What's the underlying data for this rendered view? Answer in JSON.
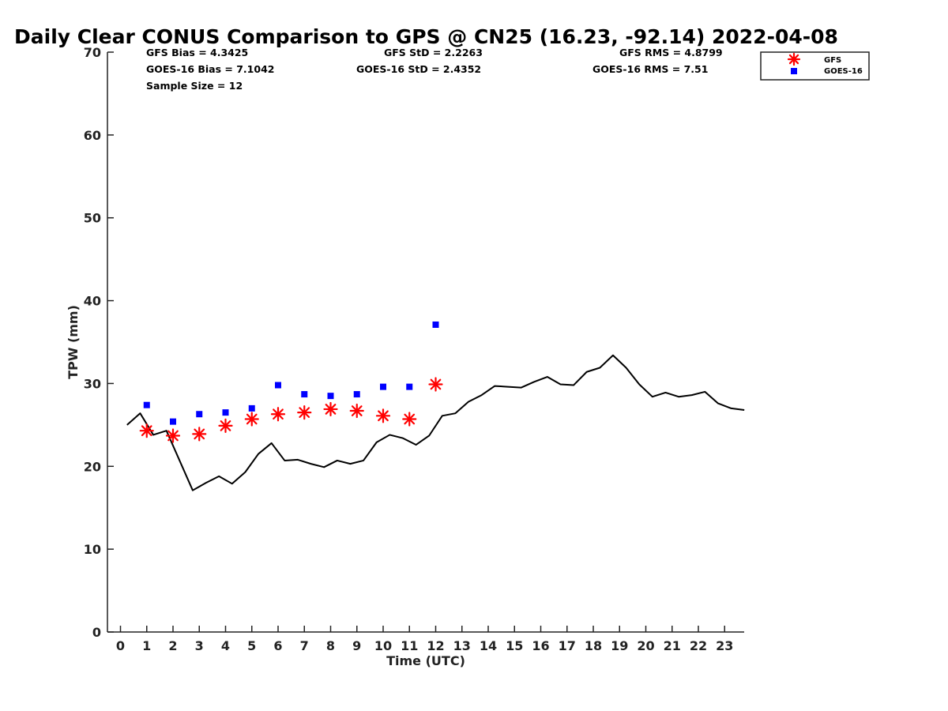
{
  "chart_data": {
    "type": "scatter",
    "title": "Daily Clear CONUS Comparison to GPS @ CN25 (16.23, -92.14) 2022-04-08",
    "xlabel": "Time (UTC)",
    "ylabel": "TPW (mm)",
    "xlim": [
      -0.5,
      23.8
    ],
    "ylim": [
      0,
      70
    ],
    "xticks": [
      0,
      1,
      2,
      3,
      4,
      5,
      6,
      7,
      8,
      9,
      10,
      11,
      12,
      13,
      14,
      15,
      16,
      17,
      18,
      19,
      20,
      21,
      22,
      23
    ],
    "yticks": [
      0,
      10,
      20,
      30,
      40,
      50,
      60,
      70
    ],
    "grid": false,
    "legend_position": "top-right",
    "stats": {
      "gfs_bias": "GFS Bias = 4.3425",
      "goes_bias": "GOES-16 Bias = 7.1042",
      "sample_size": "Sample Size = 12",
      "gfs_std": "GFS StD = 2.2263",
      "goes_std": "GOES-16 StD = 2.4352",
      "gfs_rms": "GFS RMS = 4.8799",
      "goes_rms": "GOES-16 RMS = 7.51"
    },
    "series": [
      {
        "name": "GFS",
        "marker": "asterisk",
        "color": "#ff0000",
        "x": [
          1,
          2,
          3,
          4,
          5,
          6,
          7,
          8,
          9,
          10,
          11,
          12
        ],
        "y": [
          24.3,
          23.7,
          23.9,
          24.9,
          25.7,
          26.3,
          26.5,
          26.9,
          26.7,
          26.1,
          25.7,
          29.9
        ]
      },
      {
        "name": "GOES-16",
        "marker": "square",
        "color": "#0000ff",
        "x": [
          1,
          2,
          3,
          4,
          5,
          6,
          7,
          8,
          9,
          10,
          11,
          12
        ],
        "y": [
          27.4,
          25.4,
          26.3,
          26.5,
          27.0,
          29.8,
          28.7,
          28.5,
          28.7,
          29.6,
          29.6,
          37.1
        ]
      },
      {
        "marker": "line",
        "color": "#000000",
        "x": [
          0.25,
          0.75,
          1.25,
          1.75,
          2.25,
          2.75,
          3.25,
          3.75,
          4.25,
          4.75,
          5.25,
          5.75,
          6.25,
          6.75,
          7.25,
          7.75,
          8.25,
          8.75,
          9.25,
          9.75,
          10.25,
          10.75,
          11.25,
          11.75,
          12.25,
          12.75,
          13.25,
          13.75,
          14.25,
          14.75,
          15.25,
          15.75,
          16.25,
          16.75,
          17.25,
          17.75,
          18.25,
          18.75,
          19.25,
          19.75,
          20.25,
          20.75,
          21.25,
          21.75,
          22.25,
          22.75,
          23.25,
          23.75
        ],
        "y": [
          25.0,
          26.4,
          23.8,
          24.3,
          20.7,
          17.1,
          18.0,
          18.8,
          17.9,
          19.3,
          21.5,
          22.8,
          20.7,
          20.8,
          20.3,
          19.9,
          20.7,
          20.3,
          20.7,
          22.9,
          23.8,
          23.4,
          22.6,
          23.7,
          26.1,
          26.4,
          27.8,
          28.6,
          29.7,
          29.6,
          29.5,
          30.2,
          30.8,
          29.9,
          29.8,
          31.4,
          31.9,
          33.4,
          31.9,
          29.9,
          28.4,
          28.9,
          28.4,
          28.6,
          29.0,
          27.6,
          27.0,
          26.8
        ]
      }
    ]
  }
}
